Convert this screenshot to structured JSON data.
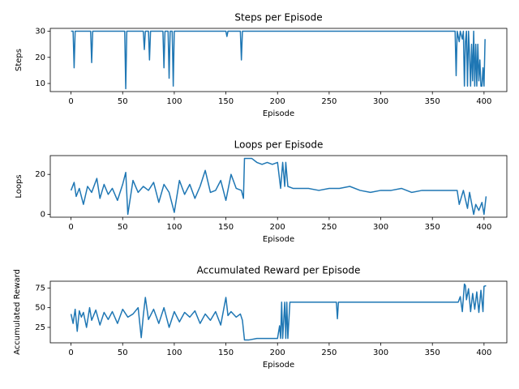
{
  "chart_data": [
    {
      "type": "line",
      "title": "Steps per Episode",
      "xlabel": "Episode",
      "ylabel": "Steps",
      "color": "#1f77b4",
      "x": [
        0,
        1,
        2,
        3,
        4,
        19,
        20,
        21,
        52,
        53,
        54,
        70,
        71,
        72,
        75,
        76,
        77,
        89,
        90,
        91,
        94,
        95,
        96,
        98,
        99,
        100,
        150,
        151,
        152,
        164,
        165,
        166,
        372,
        373,
        374,
        376,
        377,
        379,
        380,
        381,
        382,
        383,
        384,
        385,
        386,
        387,
        388,
        389,
        390,
        391,
        392,
        393,
        394,
        395,
        396,
        397,
        398,
        399,
        400,
        401
      ],
      "values": [
        30,
        30,
        30,
        16,
        30,
        30,
        18,
        30,
        30,
        8,
        30,
        30,
        23,
        30,
        30,
        19,
        30,
        30,
        16,
        30,
        30,
        12,
        30,
        30,
        9,
        30,
        30,
        28,
        30,
        30,
        19,
        30,
        30,
        13,
        30,
        26,
        30,
        27,
        30,
        9,
        26,
        30,
        9,
        30,
        21,
        9,
        25,
        11,
        30,
        9,
        25,
        9,
        25,
        11,
        19,
        9,
        9,
        16,
        9,
        27
      ],
      "xlim": [
        -20.1,
        422.1
      ],
      "xticks": [
        0,
        50,
        100,
        150,
        200,
        250,
        300,
        350,
        400
      ],
      "ylim": [
        6.9,
        31.1
      ],
      "yticks": [
        10,
        20,
        30
      ]
    },
    {
      "type": "line",
      "title": "Loops per Episode",
      "xlabel": "Episode",
      "ylabel": "Loops",
      "color": "#1f77b4",
      "x": [
        0,
        3,
        5,
        8,
        12,
        16,
        20,
        25,
        28,
        32,
        36,
        40,
        45,
        50,
        53,
        55,
        60,
        65,
        70,
        75,
        80,
        85,
        90,
        95,
        100,
        105,
        110,
        115,
        120,
        125,
        130,
        135,
        140,
        145,
        150,
        155,
        160,
        165,
        167,
        168,
        175,
        180,
        185,
        190,
        195,
        200,
        203,
        205,
        207,
        208,
        210,
        215,
        220,
        230,
        240,
        250,
        260,
        270,
        280,
        290,
        300,
        310,
        320,
        330,
        340,
        350,
        360,
        370,
        374,
        376,
        380,
        384,
        386,
        390,
        392,
        395,
        398,
        400,
        402
      ],
      "values": [
        12,
        16,
        9,
        13,
        5,
        14,
        11,
        18,
        8,
        15,
        10,
        13,
        7,
        15,
        21,
        0,
        17,
        11,
        14,
        12,
        16,
        6,
        15,
        11,
        1,
        17,
        10,
        15,
        8,
        14,
        22,
        11,
        12,
        17,
        7,
        20,
        13,
        12,
        8,
        28,
        28,
        26,
        25,
        26,
        25,
        26,
        13,
        26,
        14,
        26,
        14,
        13,
        13,
        13,
        12,
        13,
        13,
        14,
        12,
        11,
        12,
        12,
        13,
        11,
        12,
        12,
        12,
        12,
        12,
        5,
        12,
        3,
        11,
        0,
        5,
        2,
        6,
        0,
        9
      ],
      "xlim": [
        -20.1,
        422.1
      ],
      "xticks": [
        0,
        50,
        100,
        150,
        200,
        250,
        300,
        350,
        400
      ],
      "ylim": [
        -1.4,
        29.4
      ],
      "yticks": [
        0,
        20
      ]
    },
    {
      "type": "line",
      "title": "Accumulated Reward per Episode",
      "xlabel": "Episode",
      "ylabel": "Accumulated Reward",
      "color": "#1f77b4",
      "x": [
        0,
        2,
        4,
        6,
        8,
        10,
        12,
        15,
        18,
        20,
        24,
        28,
        32,
        36,
        40,
        45,
        50,
        55,
        60,
        65,
        68,
        70,
        72,
        75,
        80,
        85,
        90,
        95,
        100,
        105,
        110,
        115,
        120,
        125,
        130,
        135,
        140,
        145,
        150,
        152,
        155,
        160,
        164,
        166,
        168,
        172,
        180,
        190,
        200,
        202,
        203,
        204,
        205,
        207,
        208,
        209,
        210,
        212,
        220,
        250,
        257,
        258,
        259,
        270,
        300,
        350,
        372,
        375,
        377,
        379,
        381,
        382,
        383,
        385,
        387,
        389,
        391,
        393,
        395,
        397,
        399,
        400,
        402
      ],
      "values": [
        42,
        30,
        48,
        20,
        46,
        38,
        44,
        25,
        50,
        34,
        47,
        28,
        44,
        35,
        45,
        30,
        48,
        38,
        42,
        50,
        12,
        40,
        63,
        35,
        48,
        30,
        50,
        25,
        45,
        32,
        44,
        38,
        46,
        30,
        42,
        34,
        45,
        28,
        63,
        40,
        45,
        38,
        42,
        34,
        9,
        9,
        11,
        11,
        11,
        27,
        11,
        57,
        11,
        57,
        11,
        57,
        11,
        57,
        57,
        57,
        57,
        36,
        57,
        57,
        57,
        57,
        57,
        57,
        64,
        45,
        80,
        78,
        60,
        74,
        45,
        68,
        48,
        70,
        44,
        72,
        45,
        77,
        78
      ],
      "xlim": [
        -20.1,
        422.1
      ],
      "xticks": [
        0,
        50,
        100,
        150,
        200,
        250,
        300,
        350,
        400
      ],
      "ylim": [
        5.45,
        83.55
      ],
      "yticks": [
        25,
        50,
        75
      ]
    }
  ]
}
